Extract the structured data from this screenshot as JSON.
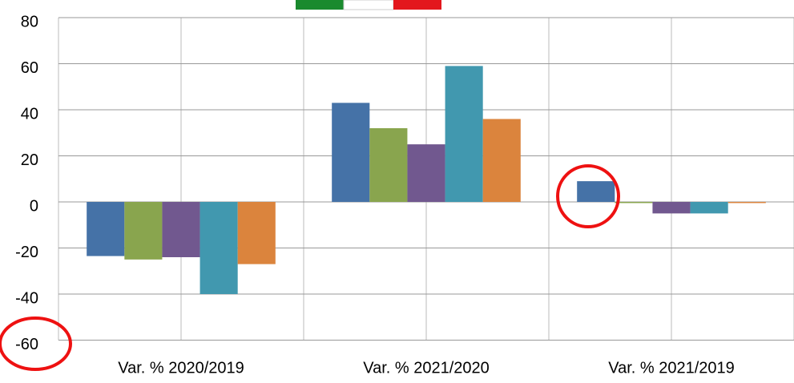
{
  "chart_data": {
    "type": "bar",
    "categories": [
      "Var. % 2020/2019",
      "Var. % 2021/2020",
      "Var. % 2021/2019"
    ],
    "series": [
      {
        "color": "#4572a7",
        "values": [
          -23.5,
          43,
          9
        ]
      },
      {
        "color": "#89a54e",
        "values": [
          -25,
          32,
          -0.5
        ]
      },
      {
        "color": "#71588f",
        "values": [
          -24,
          25,
          -5
        ]
      },
      {
        "color": "#4198af",
        "values": [
          -40,
          59,
          -5
        ]
      },
      {
        "color": "#db843d",
        "values": [
          -27,
          36,
          -0.5
        ]
      }
    ],
    "ylim": [
      -60,
      80
    ],
    "yticks": [
      -60,
      -40,
      -20,
      0,
      20,
      40,
      60,
      80
    ],
    "grid": true
  }
}
